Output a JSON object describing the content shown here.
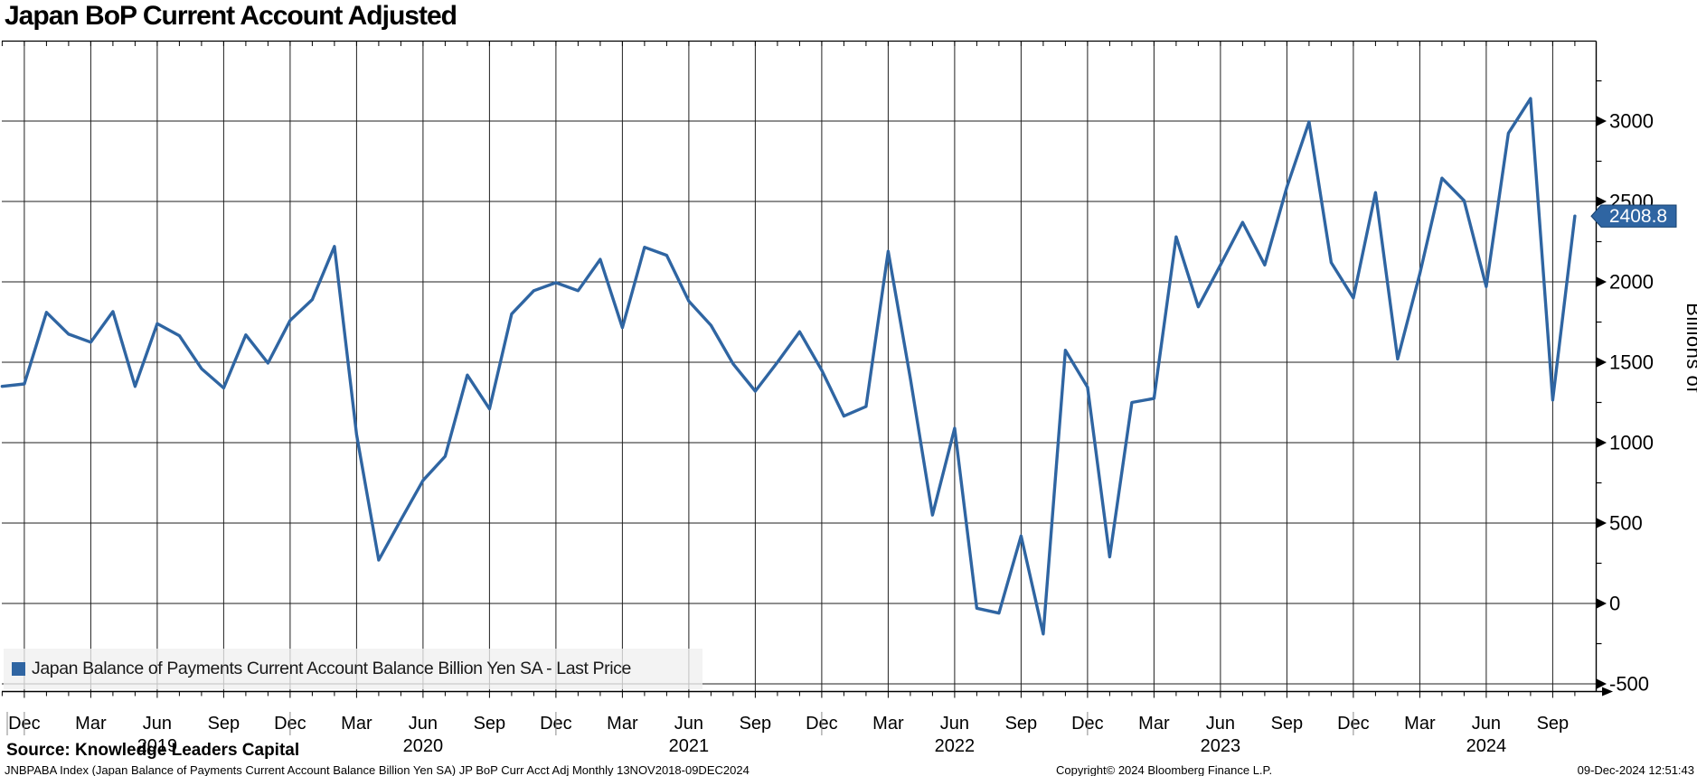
{
  "title": "Japan BoP Current Account Adjusted",
  "legend": {
    "label": "Japan Balance of Payments Current Account Balance Billion Yen SA - Last Price"
  },
  "footer": {
    "source": "Source: Knowledge Leaders Capital",
    "security": "JNBPABA Index (Japan Balance of Payments Current Account Balance Billion Yen SA) JP BoP Curr Acct Adj  Monthly 13NOV2018-09DEC2024",
    "copyright": "Copyright© 2024 Bloomberg Finance L.P.",
    "timestamp": "09-Dec-2024 12:51:43"
  },
  "chart_data": {
    "type": "line",
    "title": "Japan BoP Current Account Adjusted",
    "series_name": "Japan Balance of Payments Current Account Balance Billion Yen SA - Last Price",
    "ylabel": "Billions of",
    "xlabel": "",
    "grid": true,
    "legend_position": "bottom-left",
    "line_color": "#2f65a2",
    "grid_color": "#1f1f1f",
    "y_ticks": [
      3000,
      2500,
      2000,
      1500,
      1000,
      500,
      0,
      -500
    ],
    "ylim": [
      -550,
      3500
    ],
    "quarter_tick_labels": [
      "Dec",
      "Mar",
      "Jun",
      "Sep"
    ],
    "years": [
      "2019",
      "2020",
      "2021",
      "2022",
      "2023",
      "2024"
    ],
    "last_price": 2408.8,
    "last_price_label": "2408.8",
    "months": [
      "Nov 2018",
      "Dec 2018",
      "Jan 2019",
      "Feb 2019",
      "Mar 2019",
      "Apr 2019",
      "May 2019",
      "Jun 2019",
      "Jul 2019",
      "Aug 2019",
      "Sep 2019",
      "Oct 2019",
      "Nov 2019",
      "Dec 2019",
      "Jan 2020",
      "Feb 2020",
      "Mar 2020",
      "Apr 2020",
      "May 2020",
      "Jun 2020",
      "Jul 2020",
      "Aug 2020",
      "Sep 2020",
      "Oct 2020",
      "Nov 2020",
      "Dec 2020",
      "Jan 2021",
      "Feb 2021",
      "Mar 2021",
      "Apr 2021",
      "May 2021",
      "Jun 2021",
      "Jul 2021",
      "Aug 2021",
      "Sep 2021",
      "Oct 2021",
      "Nov 2021",
      "Dec 2021",
      "Jan 2022",
      "Feb 2022",
      "Mar 2022",
      "Apr 2022",
      "May 2022",
      "Jun 2022",
      "Jul 2022",
      "Aug 2022",
      "Sep 2022",
      "Oct 2022",
      "Nov 2022",
      "Dec 2022",
      "Jan 2023",
      "Feb 2023",
      "Mar 2023",
      "Apr 2023",
      "May 2023",
      "Jun 2023",
      "Jul 2023",
      "Aug 2023",
      "Sep 2023",
      "Oct 2023",
      "Nov 2023",
      "Dec 2023",
      "Jan 2024",
      "Feb 2024",
      "Mar 2024",
      "Apr 2024",
      "May 2024",
      "Jun 2024",
      "Jul 2024",
      "Aug 2024",
      "Sep 2024",
      "Oct 2024"
    ],
    "values": [
      1350,
      1365,
      1810,
      1675,
      1625,
      1815,
      1350,
      1740,
      1665,
      1460,
      1340,
      1670,
      1495,
      1760,
      1890,
      2220,
      1050,
      270,
      520,
      765,
      915,
      1420,
      1210,
      1800,
      1945,
      1995,
      1945,
      2140,
      1715,
      2215,
      2165,
      1880,
      1730,
      1490,
      1320,
      1500,
      1690,
      1450,
      1165,
      1225,
      2190,
      1400,
      550,
      1090,
      -30,
      -60,
      420,
      -190,
      1575,
      1345,
      290,
      1250,
      1275,
      2280,
      1845,
      2105,
      2370,
      2105,
      2590,
      2995,
      2120,
      1900,
      2555,
      1520,
      2050,
      2645,
      2505,
      1970,
      2925,
      3140,
      1265,
      2408.8
    ]
  }
}
